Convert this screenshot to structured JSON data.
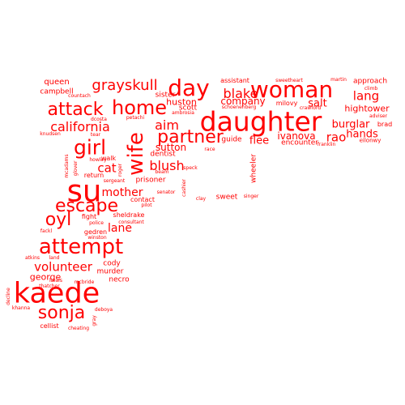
{
  "cloud": {
    "color": "#ff0000",
    "words": [
      {
        "text": "daughter",
        "weight": 1.0
      },
      {
        "text": "su",
        "weight": 0.95
      },
      {
        "text": "kaede",
        "weight": 0.9
      },
      {
        "text": "woman",
        "weight": 0.72
      },
      {
        "text": "attempt",
        "weight": 0.72
      },
      {
        "text": "wife",
        "weight": 0.7
      },
      {
        "text": "day",
        "weight": 0.66
      },
      {
        "text": "home",
        "weight": 0.62
      },
      {
        "text": "attack",
        "weight": 0.6
      },
      {
        "text": "escape",
        "weight": 0.6
      },
      {
        "text": "sonja",
        "weight": 0.58
      },
      {
        "text": "partner",
        "weight": 0.57
      },
      {
        "text": "oyl",
        "weight": 0.55
      },
      {
        "text": "girl",
        "weight": 0.55
      },
      {
        "text": "grayskull",
        "weight": 0.45
      },
      {
        "text": "california",
        "weight": 0.42
      },
      {
        "text": "blush",
        "weight": 0.42
      },
      {
        "text": "aim",
        "weight": 0.4
      },
      {
        "text": "blake",
        "weight": 0.4
      },
      {
        "text": "volunteer",
        "weight": 0.4
      },
      {
        "text": "lang",
        "weight": 0.38
      },
      {
        "text": "rao",
        "weight": 0.38
      },
      {
        "text": "cat",
        "weight": 0.38
      },
      {
        "text": "mother",
        "weight": 0.36
      },
      {
        "text": "lane",
        "weight": 0.36
      },
      {
        "text": "salt",
        "weight": 0.33
      },
      {
        "text": "burglar",
        "weight": 0.32
      },
      {
        "text": "hands",
        "weight": 0.32
      },
      {
        "text": "flee",
        "weight": 0.32
      },
      {
        "text": "hightower",
        "weight": 0.3
      },
      {
        "text": "ivanova",
        "weight": 0.3
      },
      {
        "text": "company",
        "weight": 0.3
      },
      {
        "text": "sutton",
        "weight": 0.3
      },
      {
        "text": "huston",
        "weight": 0.28
      },
      {
        "text": "george",
        "weight": 0.28
      },
      {
        "text": "cellist",
        "weight": 0.24
      },
      {
        "text": "queen",
        "weight": 0.26
      },
      {
        "text": "campbell",
        "weight": 0.24
      },
      {
        "text": "sister",
        "weight": 0.24
      },
      {
        "text": "scott",
        "weight": 0.24
      },
      {
        "text": "dentist",
        "weight": 0.24
      },
      {
        "text": "encounter",
        "weight": 0.24
      },
      {
        "text": "guide",
        "weight": 0.24
      },
      {
        "text": "wheeler",
        "weight": 0.24
      },
      {
        "text": "prisoner",
        "weight": 0.24
      },
      {
        "text": "murder",
        "weight": 0.24
      },
      {
        "text": "cody",
        "weight": 0.22
      },
      {
        "text": "necro",
        "weight": 0.22
      },
      {
        "text": "sweet",
        "weight": 0.22
      },
      {
        "text": "contact",
        "weight": 0.22
      },
      {
        "text": "fight",
        "weight": 0.22
      },
      {
        "text": "sheldrake",
        "weight": 0.22
      },
      {
        "text": "gedren",
        "weight": 0.22
      },
      {
        "text": "return",
        "weight": 0.22
      },
      {
        "text": "walk",
        "weight": 0.22
      },
      {
        "text": "approach",
        "weight": 0.22
      },
      {
        "text": "brad",
        "weight": 0.22
      },
      {
        "text": "assistant",
        "weight": 0.2
      },
      {
        "text": "milovy",
        "weight": 0.2
      },
      {
        "text": "eilonwy",
        "weight": 0.18
      },
      {
        "text": "sweetheart",
        "weight": 0.12
      },
      {
        "text": "martin",
        "weight": 0.12
      },
      {
        "text": "climb",
        "weight": 0.12
      },
      {
        "text": "adviser",
        "weight": 0.12
      },
      {
        "text": "crawford",
        "weight": 0.12
      },
      {
        "text": "schoenenberg",
        "weight": 0.12
      },
      {
        "text": "petachi",
        "weight": 0.12
      },
      {
        "text": "ambrosia",
        "weight": 0.12
      },
      {
        "text": "dcosta",
        "weight": 0.12
      },
      {
        "text": "countach",
        "weight": 0.12
      },
      {
        "text": "knudsen",
        "weight": 0.12
      },
      {
        "text": "tear",
        "weight": 0.12
      },
      {
        "text": "franklin",
        "weight": 0.12
      },
      {
        "text": "race",
        "weight": 0.12
      },
      {
        "text": "speck",
        "weight": 0.12
      },
      {
        "text": "howley",
        "weight": 0.12
      },
      {
        "text": "sergeant",
        "weight": 0.12
      },
      {
        "text": "beam",
        "weight": 0.12
      },
      {
        "text": "senator",
        "weight": 0.12
      },
      {
        "text": "pilot",
        "weight": 0.12
      },
      {
        "text": "clay",
        "weight": 0.12
      },
      {
        "text": "singer",
        "weight": 0.12
      },
      {
        "text": "cashier",
        "weight": 0.12
      },
      {
        "text": "mcadams",
        "weight": 0.12
      },
      {
        "text": "glover",
        "weight": 0.12
      },
      {
        "text": "roger",
        "weight": 0.12
      },
      {
        "text": "police",
        "weight": 0.12
      },
      {
        "text": "consultant",
        "weight": 0.12
      },
      {
        "text": "winston",
        "weight": 0.12
      },
      {
        "text": "fackl",
        "weight": 0.12
      },
      {
        "text": "atkins",
        "weight": 0.12
      },
      {
        "text": "land",
        "weight": 0.12
      },
      {
        "text": "mcbride",
        "weight": 0.12
      },
      {
        "text": "thatcher",
        "weight": 0.12
      },
      {
        "text": "heals",
        "weight": 0.12
      },
      {
        "text": "decline",
        "weight": 0.12
      },
      {
        "text": "khanna",
        "weight": 0.12
      },
      {
        "text": "deboya",
        "weight": 0.12
      },
      {
        "text": "gray",
        "weight": 0.12
      },
      {
        "text": "cheating",
        "weight": 0.12
      }
    ]
  }
}
